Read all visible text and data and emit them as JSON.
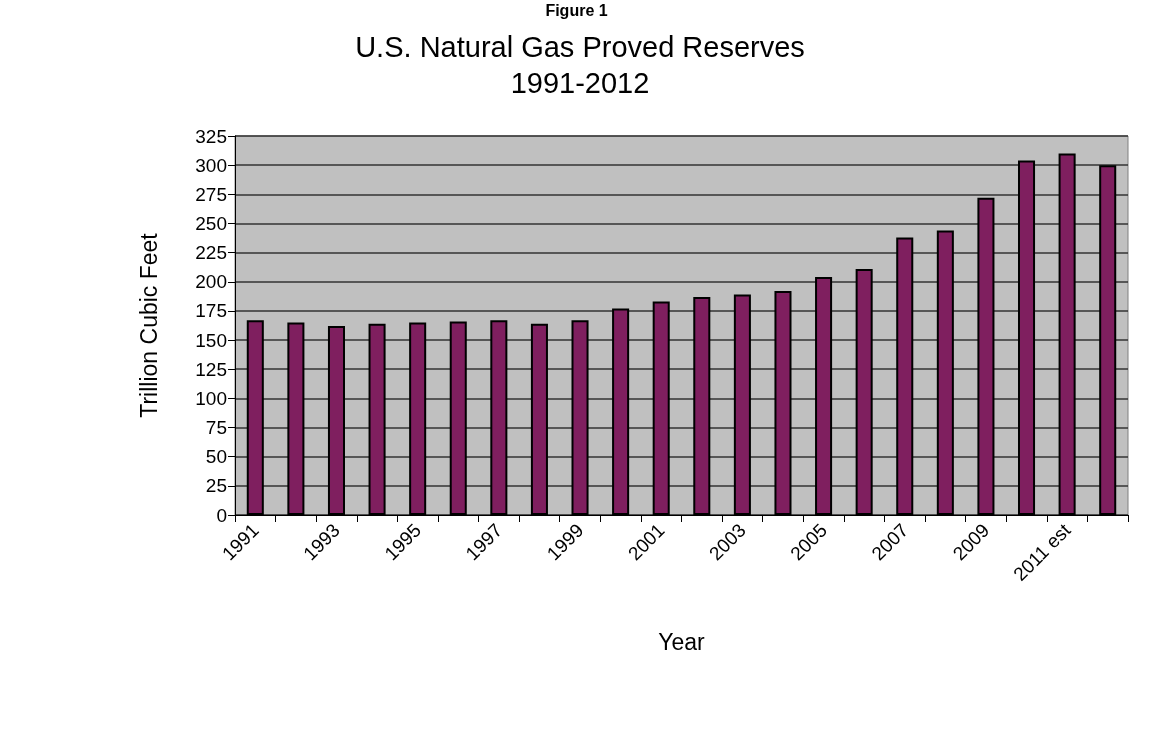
{
  "chart_data": {
    "type": "bar",
    "title": "U.S. Natural Gas Proved Reserves\n1991-2012",
    "xlabel": "Year",
    "ylabel": "Trillion Cubic Feet",
    "annotations": [
      "Figure 1"
    ],
    "categories": [
      "1991",
      null,
      "1993",
      null,
      "1995",
      null,
      "1997",
      null,
      "1999",
      null,
      "2001",
      null,
      "2003",
      null,
      "2005",
      null,
      "2007",
      null,
      "2009",
      null,
      "2011 est",
      null
    ],
    "values": [
      167,
      165,
      162,
      164,
      165,
      166,
      167,
      164,
      167,
      177,
      183,
      187,
      189,
      192,
      204,
      211,
      238,
      244,
      272,
      304,
      310,
      300
    ],
    "color": "#7f1f5f",
    "ylim": [
      0,
      325
    ],
    "yticks": [
      0,
      25,
      50,
      75,
      100,
      125,
      150,
      175,
      200,
      225,
      250,
      275,
      300,
      325
    ],
    "grid": "y"
  }
}
